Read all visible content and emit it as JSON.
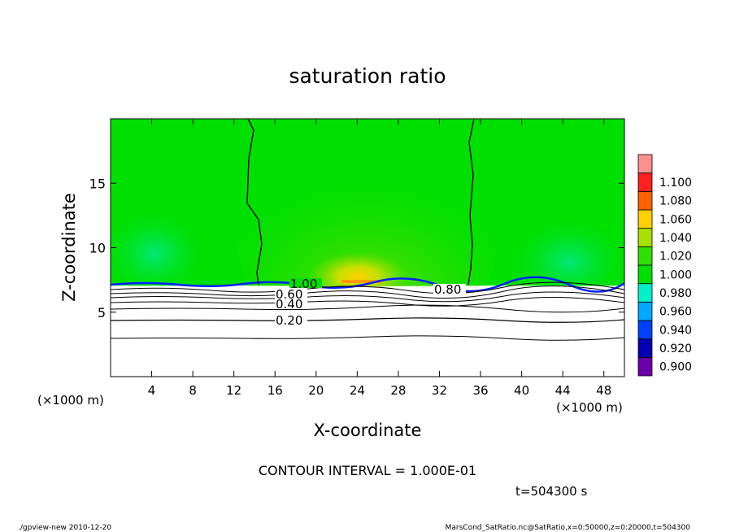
{
  "chart_data": {
    "type": "heatmap",
    "title": "saturation ratio",
    "xlabel": "X-coordinate",
    "ylabel": "Z-coordinate",
    "x_unit_left": "(×1000 m)",
    "x_unit_right": "(×1000 m)",
    "xlim": [
      0,
      50
    ],
    "ylim": [
      0,
      20
    ],
    "x_ticks": [
      4,
      8,
      12,
      16,
      20,
      24,
      28,
      32,
      36,
      40,
      44,
      48
    ],
    "y_ticks": [
      5,
      10,
      15
    ],
    "colorbar": {
      "levels": [
        0.9,
        0.92,
        0.94,
        0.96,
        0.98,
        1.0,
        1.02,
        1.04,
        1.06,
        1.08,
        1.1
      ],
      "labels": [
        "0.900",
        "0.920",
        "0.940",
        "0.960",
        "0.980",
        "1.000",
        "1.020",
        "1.040",
        "1.060",
        "1.080",
        "1.100"
      ],
      "colors": [
        "#6a00a8",
        "#0000b0",
        "#0040ff",
        "#00a8ff",
        "#00f0c8",
        "#00e000",
        "#30e000",
        "#a8e000",
        "#ffd000",
        "#ff6000",
        "#ff2020",
        "#ff9090"
      ]
    },
    "contour_labels": [
      {
        "text": "1.00",
        "x": 17.5,
        "z": 7.0
      },
      {
        "text": "0.80",
        "x": 31.5,
        "z": 6.7
      },
      {
        "text": "0.60",
        "x": 17.2,
        "z": 6.3
      },
      {
        "text": "0.40",
        "x": 17.2,
        "z": 5.3
      },
      {
        "text": "0.20",
        "x": 17.2,
        "z": 4.3
      }
    ],
    "contour_interval_text": "CONTOUR INTERVAL = 1.000E-01",
    "time_text": "t=504300 s",
    "footer_left": "./gpview-new   2010-12-20",
    "footer_right": "MarsCond_SatRatio.nc@SatRatio,x=0:50000,z=0:20000,t=504300"
  }
}
